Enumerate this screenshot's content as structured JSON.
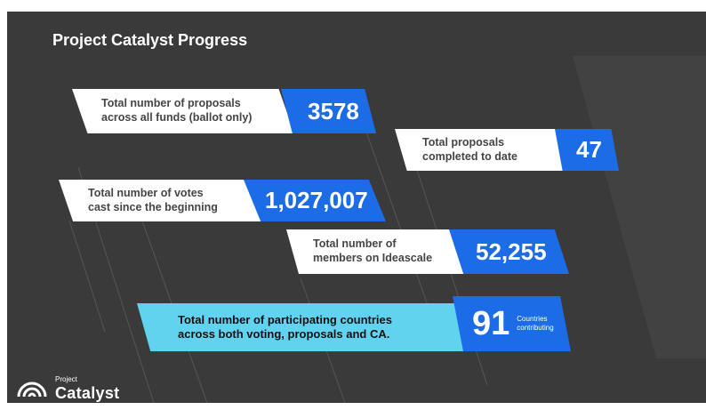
{
  "title": "Project Catalyst Progress",
  "stats": [
    {
      "label_line1": "Total number of proposals",
      "label_line2": "across all funds (ballot only)",
      "value": "3578"
    },
    {
      "label_line1": "Total proposals",
      "label_line2": "completed to date",
      "value": "47"
    },
    {
      "label_line1": "Total number of votes",
      "label_line2": "cast since the beginning",
      "value": "1,027,007"
    },
    {
      "label_line1": "Total number of",
      "label_line2": "members on Ideascale",
      "value": "52,255"
    },
    {
      "label_line1": "Total number of participating countries",
      "label_line2": "across both voting, proposals and CA.",
      "value": "91",
      "note_line1": "Countries",
      "note_line2": "contributing"
    }
  ],
  "logo": {
    "small": "Project",
    "big": "Catalyst"
  },
  "colors": {
    "background": "#3a3a3a",
    "accent_blue": "#1c6ce8",
    "highlight_cyan": "#62d3ef",
    "label_white": "#ffffff"
  }
}
